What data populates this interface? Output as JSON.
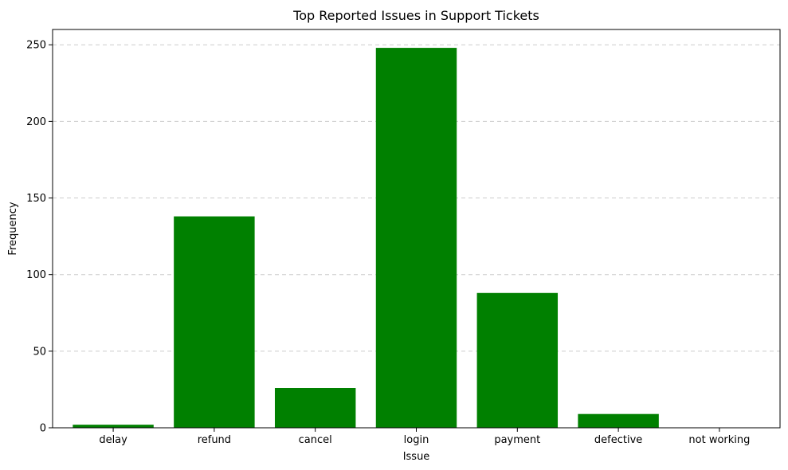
{
  "chart_data": {
    "type": "bar",
    "title": "Top Reported Issues in Support Tickets",
    "xlabel": "Issue",
    "ylabel": "Frequency",
    "categories": [
      "delay",
      "refund",
      "cancel",
      "login",
      "payment",
      "defective",
      "not working"
    ],
    "values": [
      2,
      138,
      26,
      248,
      88,
      9,
      0
    ],
    "ylim": [
      0,
      260
    ],
    "yticks": [
      0,
      50,
      100,
      150,
      200,
      250
    ],
    "grid": "y-dashed",
    "bar_color": "#008000",
    "grid_color": "#cccccc"
  }
}
